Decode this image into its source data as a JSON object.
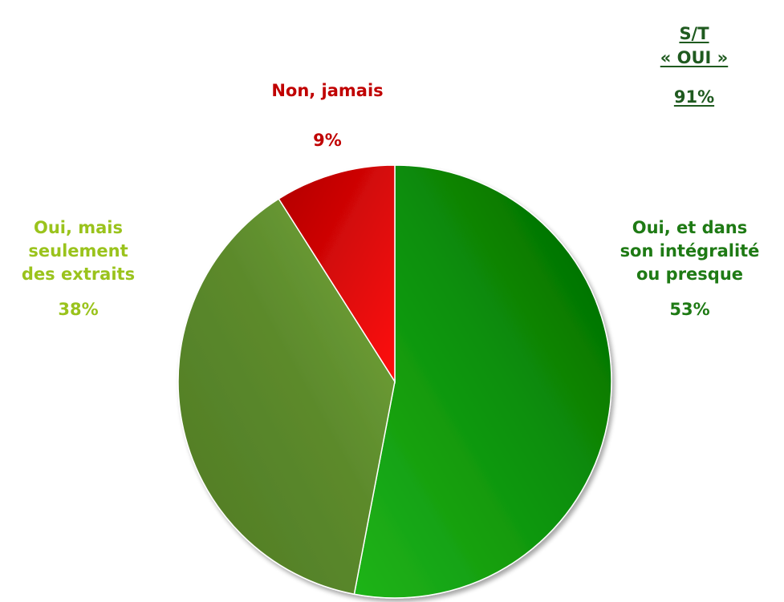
{
  "chart_data": {
    "type": "pie",
    "title": "",
    "slices": [
      {
        "label": "Oui, et dans son intégralité ou presque",
        "label_lines": [
          "Oui, et dans",
          "son intégralité",
          "ou presque"
        ],
        "value": 53,
        "value_label": "53%",
        "color": "#158a0e"
      },
      {
        "label": "Oui, mais seulement des extraits",
        "label_lines": [
          "Oui, mais",
          "seulement",
          "des extraits"
        ],
        "value": 38,
        "value_label": "38%",
        "color": "#5f8f2c"
      },
      {
        "label": "Non, jamais",
        "label_lines": [
          "Non, jamais"
        ],
        "value": 9,
        "value_label": "9%",
        "color": "#e00000"
      }
    ],
    "start_angle": "12 o'clock",
    "direction": "clockwise",
    "legend": "none",
    "subtotal": {
      "lines": [
        "S/T",
        "« OUI »"
      ],
      "value_label": "91%",
      "color": "#1f5a1f"
    }
  }
}
